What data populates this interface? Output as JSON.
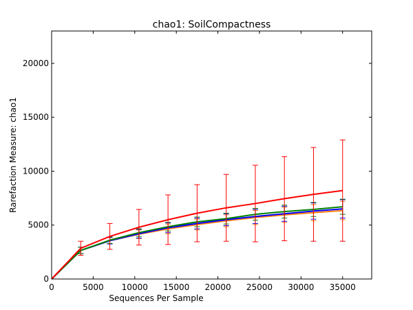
{
  "chart_data": {
    "type": "line",
    "title": "chao1: SoilCompactness",
    "xlabel": "Sequences Per Sample",
    "ylabel": "Rarefaction Measure: chao1",
    "xlim": [
      0,
      38500
    ],
    "ylim": [
      0,
      23000
    ],
    "xticks": [
      0,
      5000,
      10000,
      15000,
      20000,
      25000,
      30000,
      35000
    ],
    "yticks": [
      0,
      5000,
      10000,
      15000,
      20000
    ],
    "grid": false,
    "legend": "none",
    "x": [
      0,
      3500,
      7000,
      10500,
      14000,
      17500,
      21000,
      24500,
      28000,
      31500,
      35000
    ],
    "series": [
      {
        "color": "#ff7f0e",
        "values": [
          0,
          2650,
          3550,
          4150,
          4650,
          5050,
          5400,
          5700,
          5950,
          6150,
          6350
        ],
        "err": [
          0,
          300,
          300,
          400,
          450,
          500,
          550,
          650,
          700,
          750,
          850
        ]
      },
      {
        "color": "#0000ff",
        "values": [
          0,
          2650,
          3550,
          4200,
          4750,
          5150,
          5500,
          5800,
          6050,
          6300,
          6500
        ],
        "err": [
          0,
          300,
          300,
          400,
          450,
          500,
          550,
          650,
          700,
          750,
          850
        ]
      },
      {
        "color": "#008000",
        "values": [
          0,
          2650,
          3600,
          4300,
          4850,
          5300,
          5600,
          6000,
          6250,
          6450,
          6700
        ],
        "err": [
          0,
          300,
          300,
          350,
          400,
          450,
          500,
          550,
          600,
          650,
          700
        ]
      },
      {
        "color": "#ff0000",
        "values": [
          0,
          2850,
          3950,
          4800,
          5500,
          6100,
          6600,
          7000,
          7450,
          7850,
          8200
        ],
        "err": [
          0,
          650,
          1200,
          1650,
          2300,
          2650,
          3100,
          3550,
          3900,
          4350,
          4700
        ]
      }
    ]
  }
}
